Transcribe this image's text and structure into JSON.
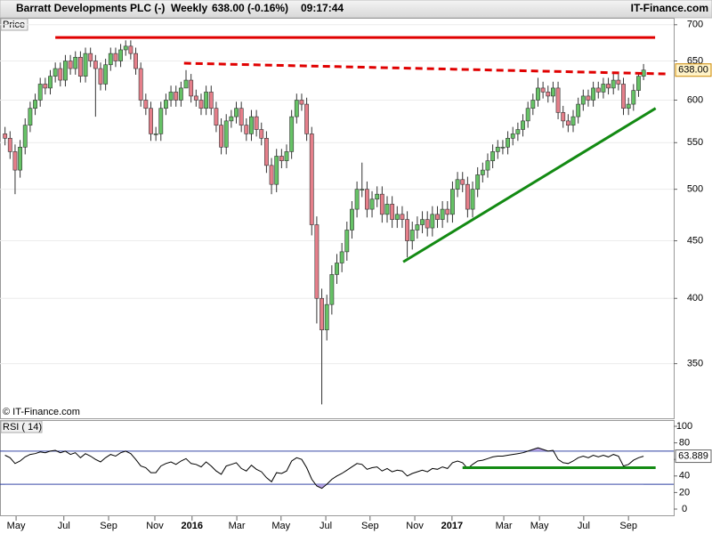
{
  "header": {
    "title": "Barratt Developments PLC (-)",
    "period": "Weekly",
    "quote": "638.00 (-0.16%)",
    "time": "09:17:44",
    "brand": "IT-Finance.com",
    "watermark": "© IT-Finance.com"
  },
  "chart_data": [
    {
      "type": "candlestick",
      "label": "Price",
      "log_scale": true,
      "grid": true,
      "up_color": "#66c266",
      "down_color": "#e57f8a",
      "xlim": [
        -1,
        133
      ],
      "ylim": [
        313,
        710
      ],
      "yticks": [
        350,
        400,
        450,
        500,
        550,
        600,
        650,
        700
      ],
      "xticks": [
        {
          "value": 2.2,
          "label": "May"
        },
        {
          "value": 11.7,
          "label": "Jul"
        },
        {
          "value": 20.6,
          "label": "Sep"
        },
        {
          "value": 29.8,
          "label": "Nov"
        },
        {
          "value": 37.2,
          "label": "2016"
        },
        {
          "value": 46.1,
          "label": "Mar"
        },
        {
          "value": 54.9,
          "label": "May"
        },
        {
          "value": 63.8,
          "label": "Jul"
        },
        {
          "value": 72.6,
          "label": "Sep"
        },
        {
          "value": 81.5,
          "label": "Nov"
        },
        {
          "value": 88.9,
          "label": "2017"
        },
        {
          "value": 99.2,
          "label": "Mar"
        },
        {
          "value": 106.3,
          "label": "May"
        },
        {
          "value": 115.1,
          "label": "Jul"
        },
        {
          "value": 124,
          "label": "Sep"
        }
      ],
      "last_price": {
        "value": 638,
        "label": "638.00"
      },
      "open": [
        560,
        555,
        540,
        520,
        545,
        570,
        590,
        600,
        620,
        615,
        630,
        640,
        625,
        650,
        640,
        655,
        630,
        660,
        650,
        640,
        620,
        645,
        660,
        650,
        665,
        670,
        660,
        640,
        600,
        590,
        560,
        560,
        590,
        600,
        610,
        600,
        615,
        625,
        605,
        600,
        590,
        610,
        590,
        570,
        545,
        575,
        580,
        590,
        570,
        560,
        580,
        565,
        555,
        525,
        505,
        535,
        530,
        540,
        580,
        600,
        595,
        560,
        465,
        400,
        375,
        395,
        420,
        430,
        440,
        460,
        480,
        500,
        500,
        480,
        490,
        495,
        475,
        485,
        470,
        475,
        470,
        450,
        460,
        465,
        470,
        462,
        475,
        470,
        480,
        475,
        500,
        510,
        505,
        480,
        500,
        515,
        520,
        530,
        540,
        545,
        545,
        555,
        560,
        565,
        575,
        590,
        600,
        615,
        610,
        605,
        615,
        585,
        575,
        570,
        580,
        595,
        605,
        600,
        615,
        610,
        620,
        615,
        625,
        620,
        590,
        595,
        612,
        630
      ],
      "high": [
        568,
        563,
        548,
        553,
        578,
        598,
        608,
        628,
        628,
        638,
        648,
        648,
        658,
        658,
        663,
        663,
        668,
        668,
        658,
        648,
        653,
        668,
        668,
        673,
        678,
        678,
        668,
        648,
        608,
        598,
        568,
        598,
        608,
        618,
        618,
        623,
        638,
        633,
        613,
        608,
        618,
        618,
        598,
        578,
        583,
        588,
        598,
        598,
        578,
        588,
        588,
        573,
        563,
        533,
        543,
        543,
        548,
        588,
        608,
        608,
        603,
        568,
        473,
        408,
        403,
        428,
        438,
        448,
        468,
        488,
        508,
        528,
        508,
        498,
        503,
        503,
        493,
        493,
        483,
        483,
        478,
        468,
        473,
        478,
        478,
        483,
        483,
        488,
        488,
        508,
        518,
        518,
        513,
        508,
        523,
        528,
        538,
        548,
        553,
        553,
        563,
        568,
        573,
        583,
        598,
        608,
        628,
        623,
        618,
        623,
        623,
        593,
        583,
        588,
        603,
        613,
        613,
        623,
        623,
        628,
        628,
        633,
        633,
        628,
        603,
        620,
        634,
        646
      ],
      "low": [
        547,
        532,
        495,
        512,
        537,
        562,
        582,
        592,
        607,
        607,
        622,
        617,
        617,
        632,
        632,
        622,
        622,
        642,
        580,
        612,
        612,
        637,
        642,
        642,
        657,
        652,
        632,
        592,
        582,
        552,
        552,
        552,
        582,
        592,
        592,
        592,
        617,
        597,
        592,
        582,
        582,
        582,
        562,
        537,
        537,
        567,
        572,
        562,
        552,
        552,
        557,
        547,
        517,
        495,
        497,
        522,
        522,
        532,
        572,
        587,
        552,
        455,
        380,
        322,
        367,
        387,
        412,
        422,
        432,
        452,
        472,
        492,
        472,
        472,
        482,
        467,
        467,
        462,
        462,
        462,
        435,
        442,
        452,
        457,
        454,
        454,
        462,
        462,
        467,
        467,
        492,
        497,
        472,
        472,
        492,
        507,
        512,
        522,
        532,
        537,
        537,
        547,
        552,
        557,
        567,
        582,
        592,
        602,
        597,
        597,
        577,
        567,
        562,
        562,
        572,
        587,
        592,
        592,
        602,
        602,
        607,
        607,
        612,
        582,
        582,
        587,
        604,
        625
      ],
      "close": [
        555,
        540,
        520,
        545,
        570,
        590,
        600,
        620,
        615,
        630,
        640,
        625,
        650,
        640,
        655,
        630,
        660,
        650,
        640,
        620,
        645,
        660,
        650,
        665,
        670,
        660,
        640,
        600,
        590,
        560,
        560,
        590,
        600,
        610,
        600,
        615,
        625,
        605,
        600,
        590,
        610,
        590,
        570,
        545,
        575,
        580,
        590,
        570,
        560,
        580,
        565,
        555,
        525,
        505,
        535,
        530,
        540,
        580,
        600,
        595,
        560,
        465,
        400,
        375,
        395,
        420,
        430,
        440,
        460,
        480,
        500,
        500,
        480,
        490,
        495,
        475,
        485,
        470,
        475,
        470,
        450,
        460,
        465,
        470,
        462,
        475,
        470,
        480,
        475,
        500,
        510,
        505,
        480,
        500,
        515,
        520,
        530,
        540,
        545,
        545,
        555,
        560,
        565,
        575,
        590,
        600,
        615,
        610,
        605,
        615,
        585,
        575,
        570,
        580,
        595,
        605,
        600,
        615,
        610,
        620,
        615,
        625,
        620,
        590,
        595,
        612,
        630,
        638
      ],
      "trendlines": [
        {
          "x": [
            10,
            129.3
          ],
          "y": [
            682,
            682
          ],
          "color": "#e00000",
          "dashed": false
        },
        {
          "x": [
            35.6,
            131.7
          ],
          "y": [
            647,
            633
          ],
          "color": "#e00000",
          "dashed": true
        },
        {
          "x": [
            79.2,
            129.4
          ],
          "y": [
            431,
            590
          ],
          "color": "#138a13",
          "dashed": false
        }
      ]
    },
    {
      "type": "line",
      "label": "RSI ( 14)",
      "color": "#000000",
      "band_color": "#2b3fa0",
      "fill_color": "#b9a6e6",
      "xlim": [
        -1,
        133
      ],
      "ylim": [
        -8.6,
        107.5
      ],
      "yticks": [
        0,
        20,
        40,
        60,
        80,
        100
      ],
      "bands": [
        30,
        70
      ],
      "values": [
        65,
        62,
        55,
        58,
        63,
        66,
        67,
        69,
        68,
        70,
        71,
        68,
        70,
        66,
        68,
        62,
        67,
        64,
        60,
        57,
        62,
        66,
        64,
        68,
        70,
        67,
        60,
        52,
        50,
        44,
        44,
        52,
        55,
        57,
        54,
        58,
        61,
        55,
        54,
        51,
        57,
        52,
        46,
        42,
        52,
        54,
        56,
        49,
        46,
        53,
        48,
        45,
        38,
        33,
        44,
        43,
        46,
        58,
        62,
        60,
        50,
        36,
        28,
        25,
        30,
        36,
        40,
        43,
        47,
        51,
        55,
        54,
        48,
        50,
        51,
        46,
        49,
        45,
        47,
        46,
        40,
        43,
        45,
        47,
        45,
        49,
        48,
        51,
        49,
        56,
        58,
        56,
        49,
        54,
        58,
        59,
        61,
        63,
        64,
        64,
        65,
        66,
        67,
        68,
        70,
        72,
        74,
        72,
        70,
        71,
        60,
        56,
        55,
        58,
        62,
        64,
        62,
        65,
        63,
        65,
        63,
        66,
        64,
        52,
        54,
        59,
        62,
        63.889
      ],
      "trendlines": [
        {
          "x": [
            91,
            129.4
          ],
          "y": [
            50,
            50
          ],
          "color": "#138a13",
          "dashed": false
        }
      ]
    }
  ]
}
